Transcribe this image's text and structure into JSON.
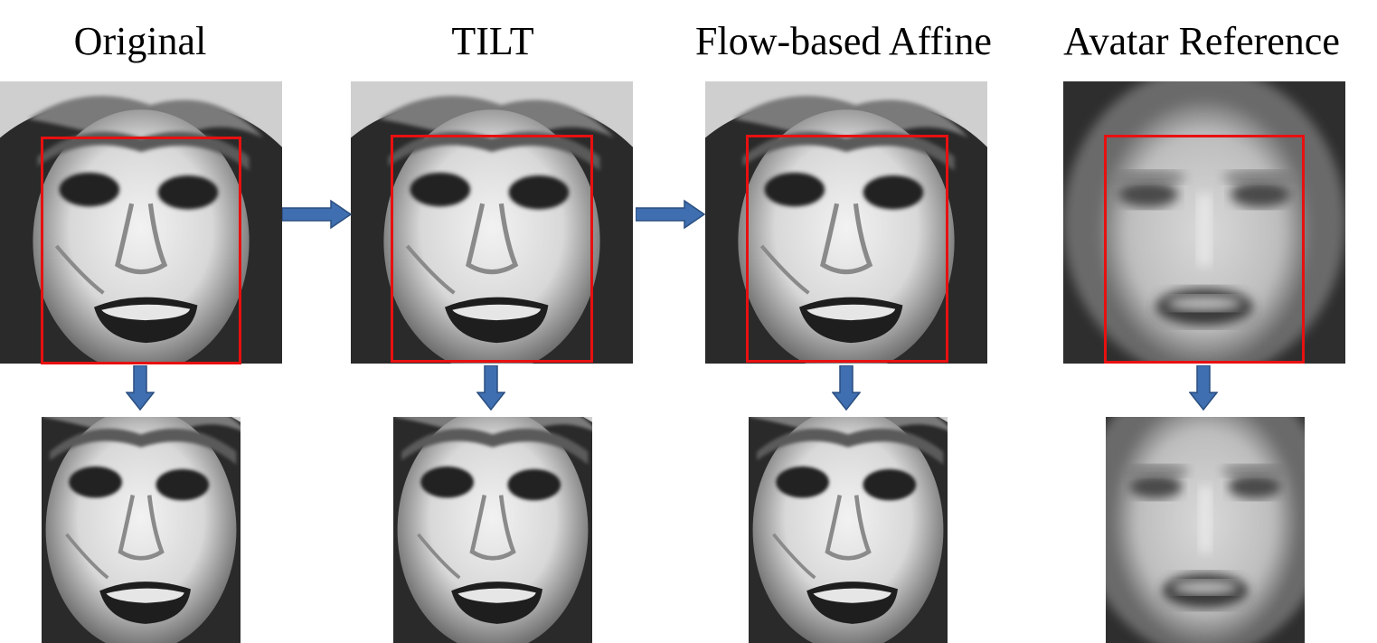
{
  "columns": [
    {
      "title": "Original",
      "kind": "photo"
    },
    {
      "title": "TILT",
      "kind": "photo"
    },
    {
      "title": "Flow-based Affine",
      "kind": "photo"
    },
    {
      "title": "Avatar Reference",
      "kind": "avatar"
    }
  ],
  "colors": {
    "crop_rect": "#e81010",
    "arrow": "#3f6fb0",
    "arrow_outline": "#2b4f80"
  }
}
